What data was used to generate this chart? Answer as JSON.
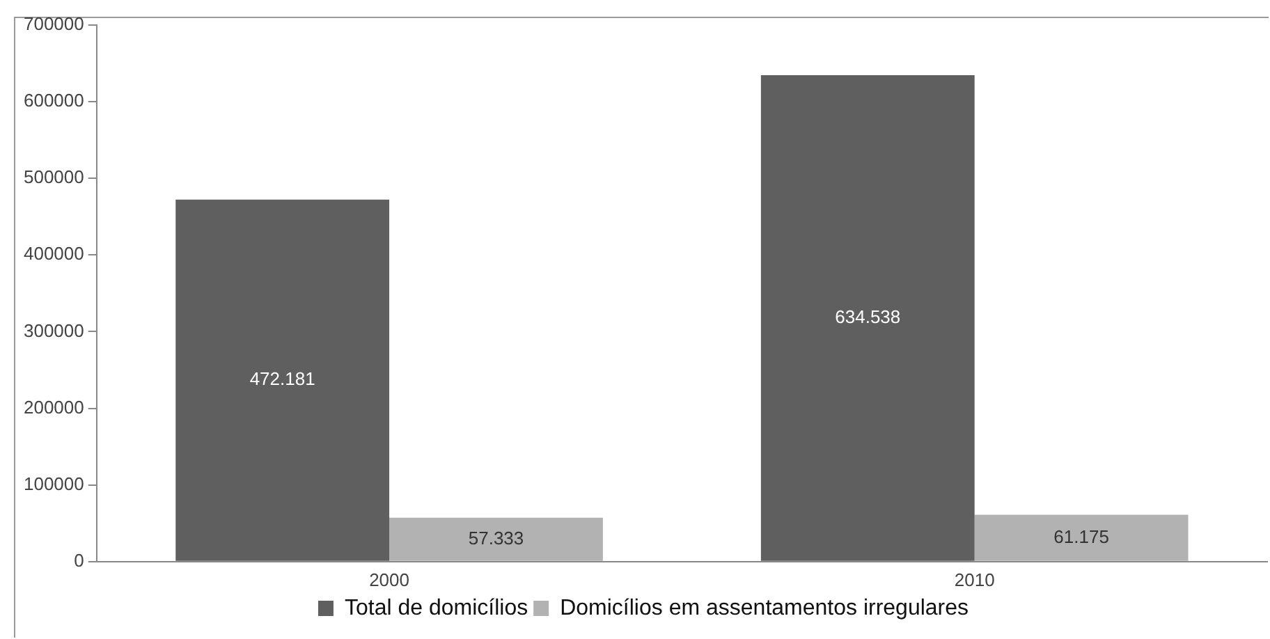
{
  "chart_data": {
    "type": "bar",
    "categories": [
      "2000",
      "2010"
    ],
    "series": [
      {
        "name": "Total de domicílios",
        "color": "#5f5f5f",
        "values": [
          472181,
          634538
        ],
        "value_labels": [
          "472.181",
          "634.538"
        ]
      },
      {
        "name": "Domicílios em assentamentos irregulares",
        "color": "#b2b2b2",
        "values": [
          57333,
          61175
        ],
        "value_labels": [
          "57.333",
          "61.175"
        ]
      }
    ],
    "ylim": [
      0,
      700000
    ],
    "yticks": [
      0,
      100000,
      200000,
      300000,
      400000,
      500000,
      600000,
      700000
    ],
    "grid": false,
    "legend": "bottom"
  }
}
